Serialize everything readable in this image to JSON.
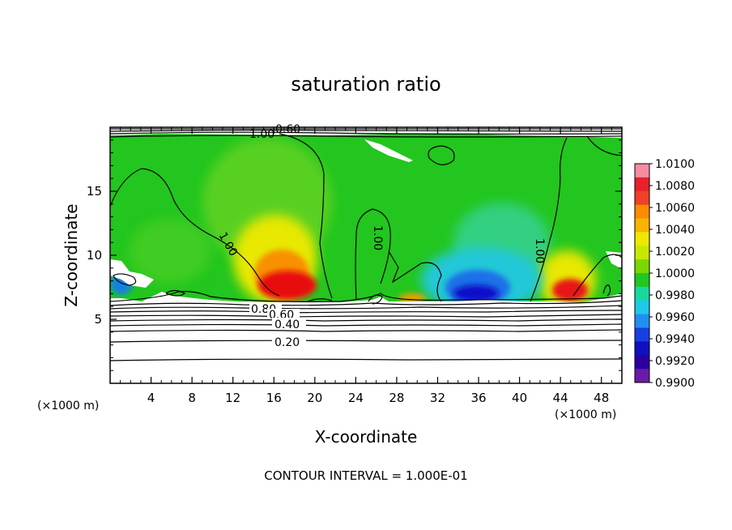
{
  "chart_data": {
    "type": "heatmap",
    "title": "saturation ratio",
    "xlabel": "X-coordinate",
    "ylabel": "Z-coordinate",
    "x_unit": "(×1000 m)",
    "y_unit": "(×1000 m)",
    "xlim": [
      0,
      50
    ],
    "ylim": [
      0,
      20
    ],
    "x_ticks": [
      "4",
      "8",
      "12",
      "16",
      "20",
      "24",
      "28",
      "32",
      "36",
      "40",
      "44",
      "48"
    ],
    "y_ticks": [
      "5",
      "10",
      "15"
    ],
    "colorbar": {
      "min": 0.99,
      "max": 1.01,
      "labels": [
        "1.0100",
        "1.0080",
        "1.0060",
        "1.0040",
        "1.0020",
        "1.0000",
        "0.9980",
        "0.9960",
        "0.9940",
        "0.9920",
        "0.9900"
      ],
      "colors": [
        "#f58ca0",
        "#e8202a",
        "#f1402a",
        "#fa8c00",
        "#f8b400",
        "#f0e800",
        "#c8e800",
        "#78d800",
        "#20c820",
        "#18d8a0",
        "#20c8e8",
        "#2090f0",
        "#1840e0",
        "#1010c0",
        "#2a00a0",
        "#6a1aa8"
      ]
    },
    "contour_labels": [
      "0.60",
      "1.00",
      "1.00",
      "1.00",
      "1.00",
      "0.80",
      "0.60",
      "0.40",
      "0.20"
    ],
    "contour_interval_text": "CONTOUR INTERVAL = 1.000E-01",
    "colors": {
      "background_field": "#22c61e",
      "dry_region": "#ffffff",
      "supersaturated": "#e81010",
      "subsaturated": "#1414d0"
    }
  }
}
